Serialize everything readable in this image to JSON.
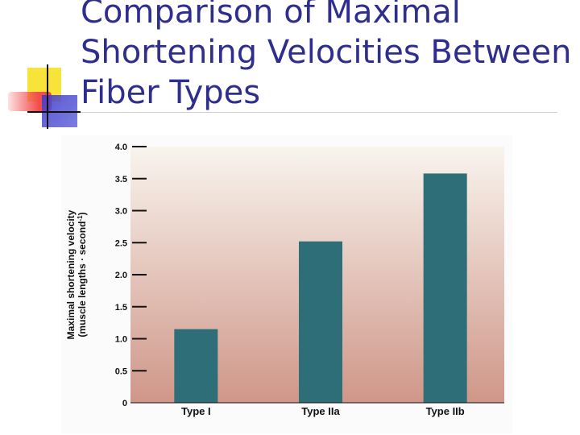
{
  "slide": {
    "title": "Comparison of Maximal Shortening Velocities Between Fiber Types"
  },
  "chart_data": {
    "type": "bar",
    "categories": [
      "Type I",
      "Type IIa",
      "Type IIb"
    ],
    "values": [
      1.15,
      2.52,
      3.58
    ],
    "ylabel_line1": "Maximal shortening velocity",
    "ylabel_line2": "(muscle lengths · second",
    "ylabel_superscript": "-1",
    "ylabel_close": ")",
    "ylim": [
      0,
      4.0
    ],
    "yticks": [
      "0",
      "0.5",
      "1.0",
      "1.5",
      "2.0",
      "2.5",
      "3.0",
      "3.5",
      "4.0"
    ],
    "ytick_values": [
      0,
      0.5,
      1.0,
      1.5,
      2.0,
      2.5,
      3.0,
      3.5,
      4.0
    ],
    "bar_color": "#2e6e78",
    "background_top": "#f8f4ee",
    "background_bottom": "#cf9688"
  }
}
